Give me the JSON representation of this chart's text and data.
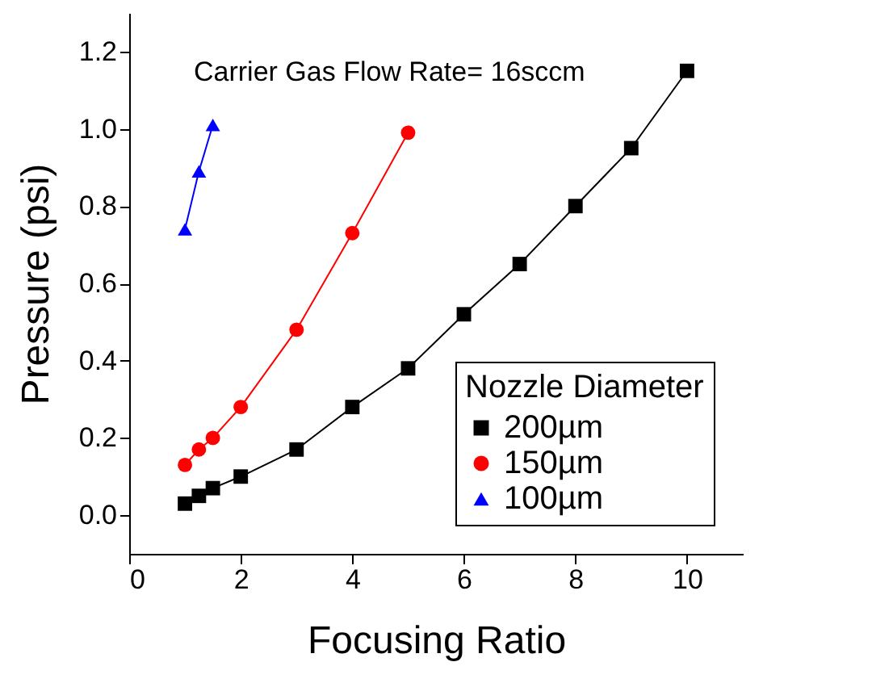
{
  "chart_data": {
    "type": "line",
    "xlabel": "Focusing Ratio",
    "ylabel": "Pressure (psi)",
    "legend_title": "Nozzle Diameter",
    "legend": "bottom right",
    "annotations": [
      "Carrier Gas Flow Rate= 16sccm"
    ],
    "xlim": [
      0,
      11
    ],
    "xticks": [
      0,
      2,
      4,
      6,
      8,
      10
    ],
    "ylim": [
      -0.1,
      1.3
    ],
    "yticks": [
      {
        "value": 0,
        "label": "0.0"
      },
      {
        "value": 0.2,
        "label": "0.2"
      },
      {
        "value": 0.4,
        "label": "0.4"
      },
      {
        "value": 0.6,
        "label": "0.6"
      },
      {
        "value": 0.8,
        "label": "0.8"
      },
      {
        "value": 1,
        "label": "1.0"
      },
      {
        "value": 1.2,
        "label": "1.2"
      }
    ],
    "grid": false,
    "line_style": "solid",
    "series": [
      {
        "name": "200µm",
        "color": "#000000",
        "marker": "square",
        "x": [
          1,
          1.25,
          1.5,
          2,
          3,
          4,
          5,
          6,
          7,
          8,
          9,
          10
        ],
        "values": [
          0.03,
          0.05,
          0.07,
          0.1,
          0.17,
          0.28,
          0.38,
          0.52,
          0.65,
          0.8,
          0.95,
          1.15
        ]
      },
      {
        "name": "150µm",
        "color": "#ff0000",
        "marker": "circle",
        "x": [
          1,
          1.25,
          1.5,
          2,
          3,
          4,
          5
        ],
        "values": [
          0.13,
          0.17,
          0.2,
          0.28,
          0.48,
          0.73,
          0.99
        ]
      },
      {
        "name": "100µm",
        "color": "#0000ff",
        "marker": "triangle",
        "x": [
          1,
          1.25,
          1.5
        ],
        "values": [
          0.74,
          0.89,
          1.01
        ]
      }
    ]
  }
}
